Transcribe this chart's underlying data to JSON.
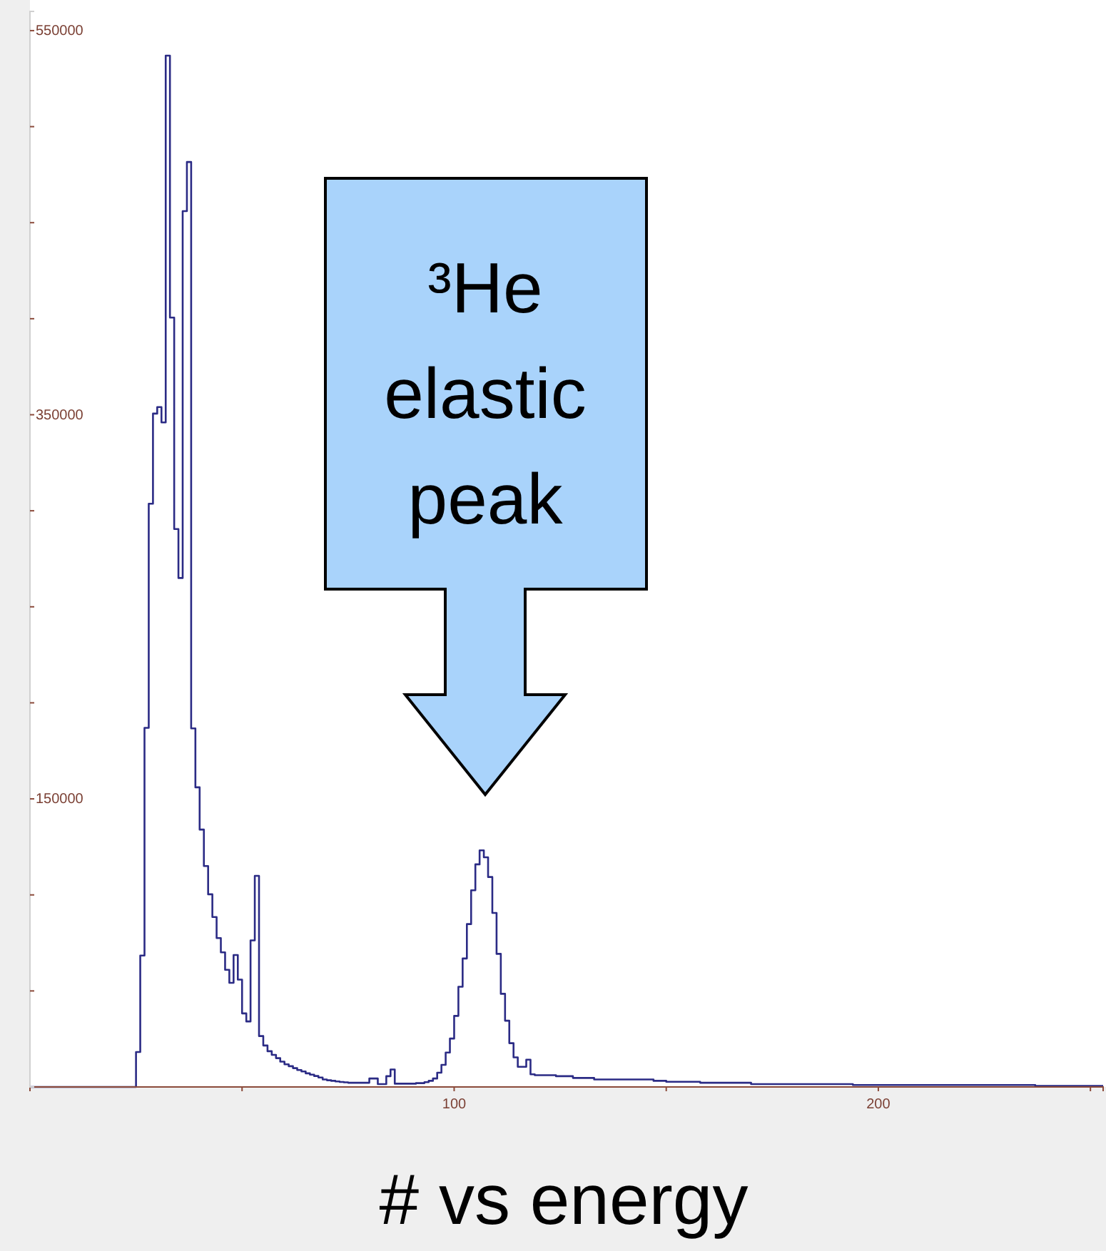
{
  "chart_data": {
    "type": "histogram",
    "title": "# vs energy",
    "annotations": [
      "³He elastic peak"
    ],
    "bins": [
      0,
      1,
      2,
      3,
      4,
      5,
      6,
      7,
      8,
      9,
      10,
      11,
      12,
      13,
      14,
      15,
      16,
      17,
      18,
      19,
      20,
      21,
      22,
      23,
      24,
      25,
      26,
      27,
      28,
      29,
      30,
      31,
      32,
      33,
      34,
      35,
      36,
      37,
      38,
      39,
      40,
      41,
      42,
      43,
      44,
      45,
      46,
      47,
      48,
      49,
      50,
      51,
      52,
      53,
      54,
      55,
      56,
      57,
      58,
      59,
      60,
      61,
      62,
      63,
      64,
      65,
      66,
      67,
      68,
      69,
      70,
      71,
      72,
      73,
      74,
      75,
      76,
      77,
      78,
      79,
      80,
      81,
      82,
      83,
      84,
      85,
      86,
      87,
      88,
      89,
      90,
      91,
      92,
      93,
      94,
      95,
      96,
      97,
      98,
      99,
      100,
      101,
      102,
      103,
      104,
      105,
      106,
      107,
      108,
      109,
      110,
      111,
      112,
      113,
      114,
      115,
      116,
      117,
      118,
      119,
      120,
      121,
      122,
      123,
      124,
      125,
      126,
      127,
      128,
      129,
      130,
      131,
      132,
      133,
      134,
      135,
      136,
      137,
      138,
      139,
      140,
      141,
      142,
      143,
      144,
      145,
      146,
      147,
      148,
      149,
      150,
      151,
      152,
      153,
      154,
      155,
      156,
      157,
      158,
      159,
      160,
      161,
      162,
      163,
      164,
      165,
      166,
      167,
      168,
      169,
      170,
      171,
      172,
      173,
      174,
      175,
      176,
      177,
      178,
      179,
      180,
      181,
      182,
      183,
      184,
      185,
      186,
      187,
      188,
      189,
      190,
      191,
      192,
      193,
      194,
      195,
      196,
      197,
      198,
      199,
      200,
      201,
      202,
      203,
      204,
      205,
      206,
      207,
      208,
      209,
      210,
      211,
      212,
      213,
      214,
      215,
      216,
      217,
      218,
      219,
      220,
      221,
      222,
      223,
      224,
      225,
      226,
      227,
      228,
      229,
      230,
      231,
      232,
      233,
      234,
      235,
      236,
      237,
      238,
      239,
      240,
      241,
      242,
      243,
      244,
      245,
      246,
      247,
      248,
      249,
      250,
      251,
      252,
      253
    ],
    "values": [
      0,
      0,
      0,
      0,
      0,
      0,
      0,
      0,
      0,
      0,
      0,
      0,
      0,
      0,
      0,
      0,
      0,
      0,
      0,
      0,
      0,
      0,
      0,
      0,
      0,
      18200,
      68400,
      187000,
      303700,
      350600,
      354000,
      346000,
      537000,
      400600,
      290500,
      265000,
      456000,
      481600,
      186700,
      156000,
      134000,
      115000,
      100300,
      88500,
      77500,
      70100,
      61000,
      54200,
      68700,
      55900,
      38300,
      34100,
      76300,
      109900,
      26500,
      21600,
      18600,
      16700,
      15000,
      13200,
      11800,
      10800,
      9800,
      8800,
      8100,
      7100,
      6400,
      5700,
      4900,
      3900,
      3500,
      3200,
      2900,
      2600,
      2400,
      2200,
      2200,
      2200,
      2200,
      2200,
      4400,
      4400,
      1500,
      1500,
      5600,
      9100,
      1700,
      1700,
      1700,
      1700,
      1700,
      2000,
      2000,
      2500,
      3200,
      4400,
      7400,
      11500,
      17900,
      25200,
      37000,
      52200,
      66900,
      84800,
      102400,
      115900,
      123200,
      119600,
      109300,
      90600,
      69300,
      48500,
      34500,
      22800,
      15400,
      10500,
      10500,
      14200,
      6600,
      6100,
      6100,
      6100,
      6100,
      6100,
      5600,
      5600,
      5600,
      5600,
      4700,
      4700,
      4700,
      4700,
      4700,
      3900,
      3900,
      3900,
      3900,
      3900,
      3900,
      3900,
      3900,
      3900,
      3900,
      3900,
      3900,
      3900,
      3900,
      3200,
      3200,
      3200,
      2700,
      2700,
      2700,
      2700,
      2700,
      2700,
      2700,
      2700,
      2200,
      2200,
      2200,
      2200,
      2200,
      2200,
      2200,
      2200,
      2200,
      2200,
      2200,
      2200,
      1500,
      1500,
      1500,
      1500,
      1500,
      1500,
      1500,
      1500,
      1500,
      1500,
      1500,
      1500,
      1500,
      1500,
      1500,
      1500,
      1500,
      1500,
      1500,
      1500,
      1500,
      1500,
      1500,
      1500,
      1000,
      1000,
      1000,
      1000,
      1000,
      1000,
      1000,
      1000,
      1000,
      1000,
      1000,
      1000,
      1000,
      1000,
      1000,
      1000,
      1000,
      1000,
      1000,
      1000,
      1000,
      1000,
      1000,
      1000,
      1000,
      1000,
      1000,
      1000,
      1000,
      1000,
      1000,
      1000,
      1000,
      1000,
      1000,
      1000,
      1000,
      1000,
      1000,
      1000,
      1000,
      1000,
      1000,
      500,
      500,
      500,
      500,
      500,
      500,
      500,
      500,
      500,
      500,
      500,
      500,
      500,
      500,
      500,
      500
    ],
    "color": "#2b2b85",
    "xlim": [
      0,
      253
    ],
    "xticks": [
      {
        "value": 50,
        "label": null
      },
      100,
      {
        "value": 150,
        "label": null
      },
      200,
      {
        "value": 250,
        "label": null
      }
    ],
    "ylim": [
      0,
      560000
    ],
    "yticks": [
      {
        "value": 50000,
        "label": null
      },
      {
        "value": 100000,
        "label": null
      },
      150000,
      {
        "value": 200000,
        "label": null
      },
      {
        "value": 250000,
        "label": null
      },
      {
        "value": 300000,
        "label": null
      },
      350000,
      {
        "value": 400000,
        "label": null
      },
      {
        "value": 450000,
        "label": null
      },
      {
        "value": 500000,
        "label": null
      },
      550000
    ],
    "grid": false
  }
}
